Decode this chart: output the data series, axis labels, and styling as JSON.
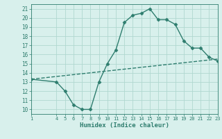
{
  "x": [
    1,
    4,
    5,
    6,
    7,
    8,
    9,
    10,
    11,
    12,
    13,
    14,
    15,
    16,
    17,
    18,
    19,
    20,
    21,
    22,
    23
  ],
  "y": [
    13.3,
    13.0,
    12.0,
    10.5,
    10.0,
    10.0,
    13.0,
    15.0,
    16.5,
    19.5,
    20.3,
    20.5,
    21.0,
    19.8,
    19.8,
    19.3,
    17.5,
    16.7,
    16.7,
    15.7,
    15.3
  ],
  "trend_x": [
    1,
    23
  ],
  "trend_y": [
    13.3,
    15.5
  ],
  "line_color": "#2e7d6e",
  "bg_color": "#d8f0ec",
  "grid_color": "#b0d8d0",
  "xlabel": "Humidex (Indice chaleur)",
  "yticks": [
    10,
    11,
    12,
    13,
    14,
    15,
    16,
    17,
    18,
    19,
    20,
    21
  ],
  "xticks": [
    1,
    4,
    5,
    6,
    7,
    8,
    9,
    10,
    11,
    12,
    13,
    14,
    15,
    16,
    17,
    18,
    19,
    20,
    21,
    22,
    23
  ],
  "xlim": [
    1,
    23
  ],
  "ylim": [
    9.5,
    21.5
  ],
  "marker_size": 2.5,
  "line_width": 1.0
}
